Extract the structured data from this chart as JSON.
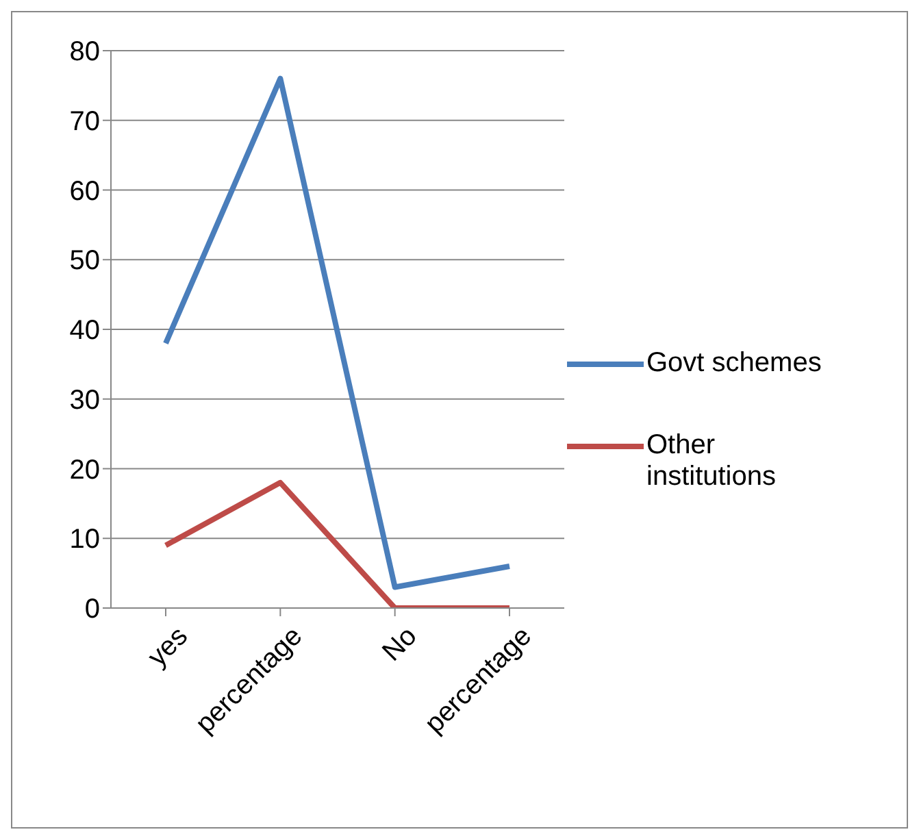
{
  "chart_data": {
    "type": "line",
    "categories": [
      "yes",
      "percentage",
      "No",
      "percentage"
    ],
    "series": [
      {
        "name": "Govt schemes",
        "color": "#4a7ebb",
        "values": [
          38,
          76,
          3,
          6
        ]
      },
      {
        "name": "Other institutions",
        "color": "#be4b48",
        "values": [
          9,
          18,
          0,
          0
        ]
      }
    ],
    "ylim": [
      0,
      80
    ],
    "yticks": [
      0,
      10,
      20,
      30,
      40,
      50,
      60,
      70,
      80
    ],
    "grid": "y",
    "legend": "right",
    "marker": "none",
    "line_style": "solid"
  }
}
